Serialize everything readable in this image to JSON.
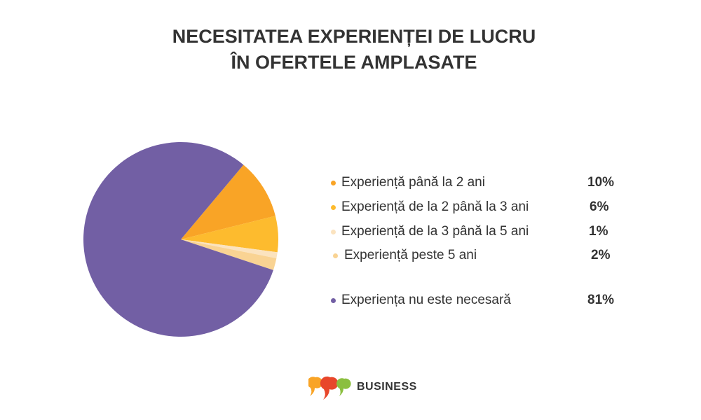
{
  "chart_data": {
    "type": "pie",
    "title_lines": [
      "NECESITATEA EXPERIENȚEI DE LUCRU",
      "ÎN OFERTELE AMPLASATE"
    ],
    "slices": [
      {
        "label": "Experiență până la 2 ani",
        "value": 10,
        "display": "10%",
        "color": "#F9A426"
      },
      {
        "label": "Experiență de la 2 până la 3 ani",
        "value": 6,
        "display": "6%",
        "color": "#FDBB2E"
      },
      {
        "label": "Experiență de la 3 până la 5 ani",
        "value": 1,
        "display": "1%",
        "color": "#FBE3BF"
      },
      {
        "label": "Experiență peste 5 ani",
        "value": 2,
        "display": "2%",
        "color": "#F9D393"
      },
      {
        "label": "Experiența nu este necesară",
        "value": 81,
        "display": "81%",
        "color": "#725FA4"
      }
    ],
    "legend_placement": "right"
  },
  "brand": {
    "name": "BUSINESS",
    "logo_colors": [
      "#F9A426",
      "#E8472B",
      "#8BBF3F"
    ]
  }
}
